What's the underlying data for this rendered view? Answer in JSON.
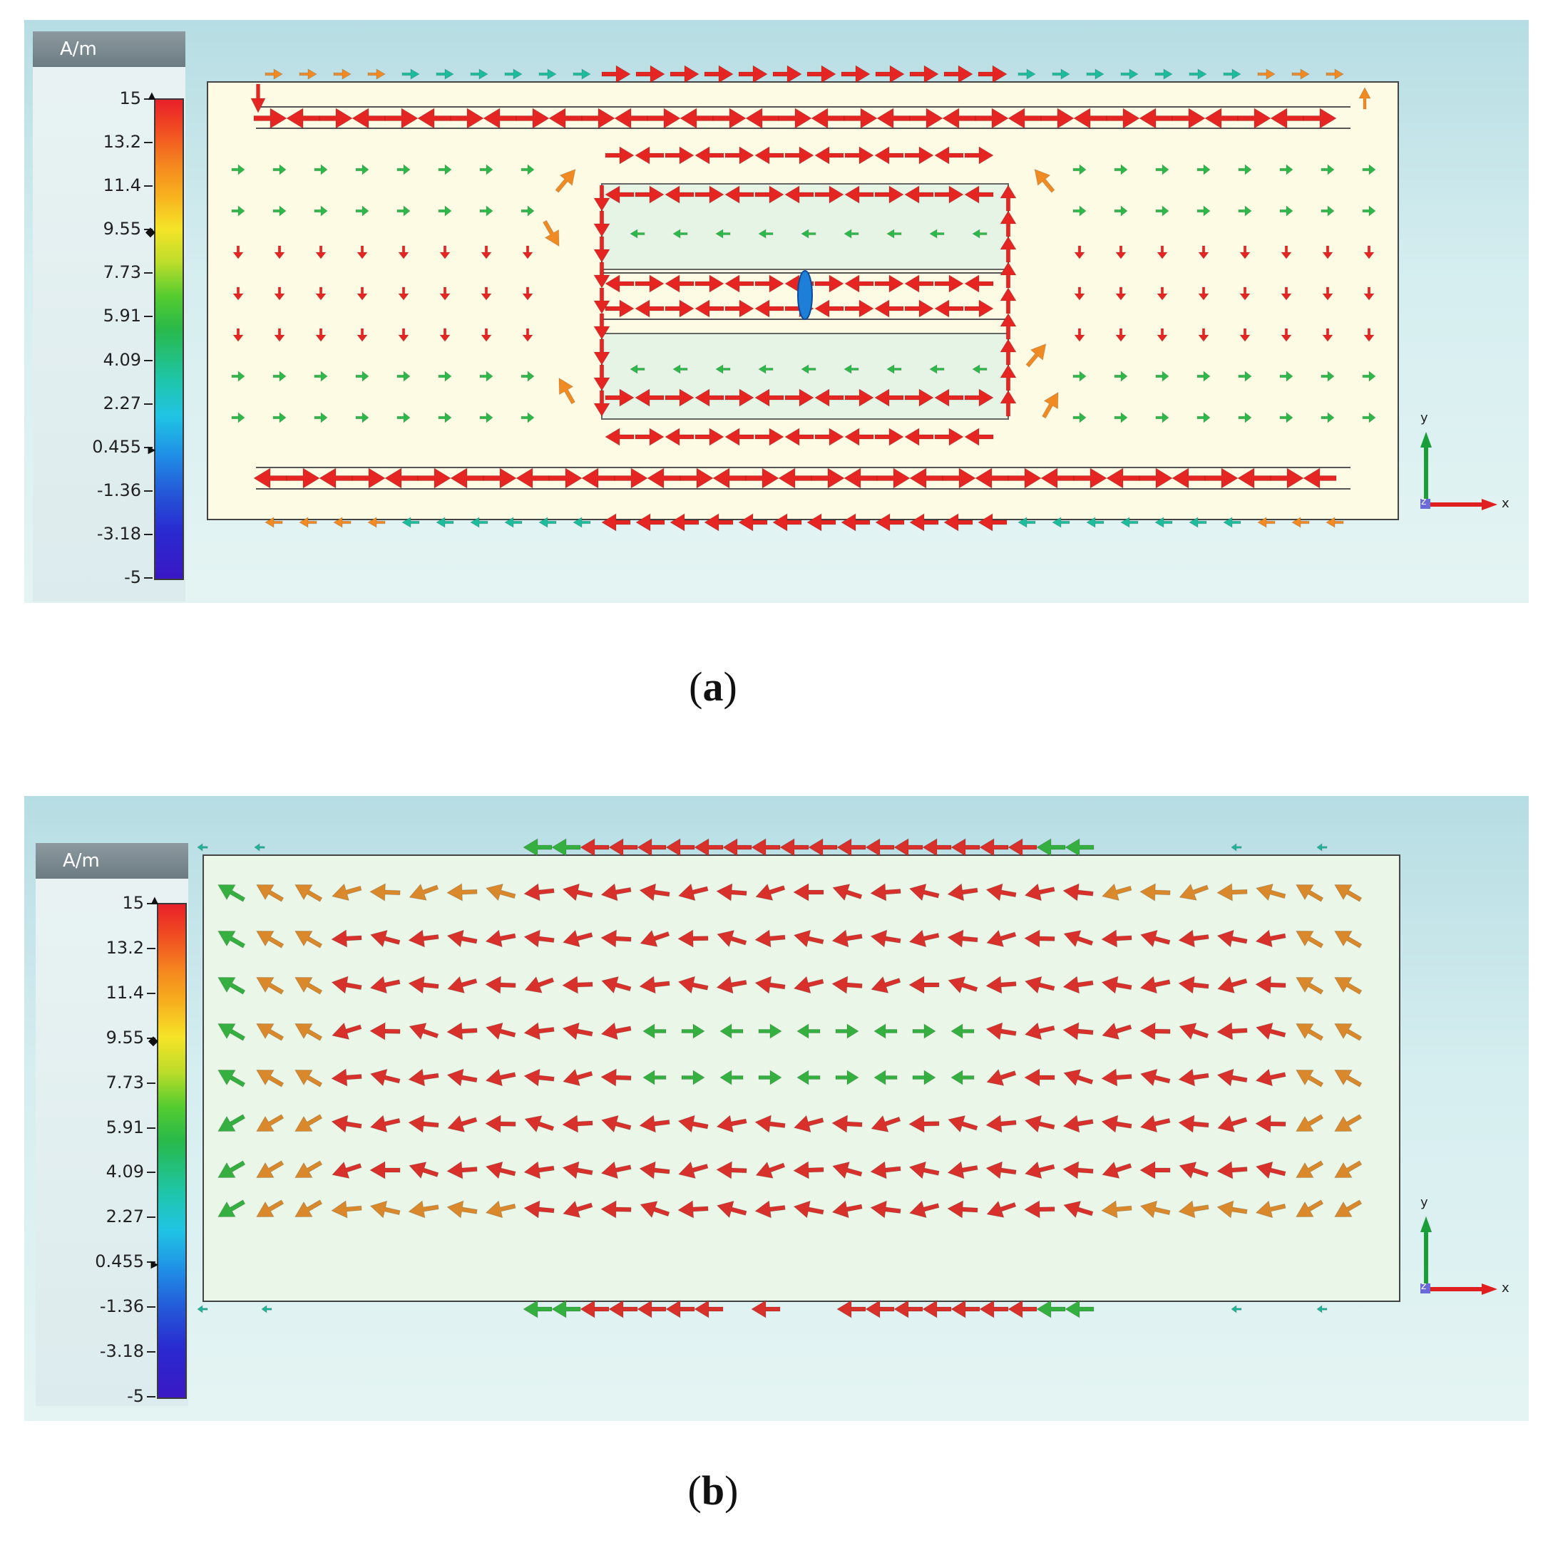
{
  "panels": [
    {
      "id": "a",
      "caption_open": "(",
      "caption_letter": "a",
      "caption_close": ")",
      "legend": {
        "unit": "A/m",
        "ticks": [
          "15",
          "13.2",
          "11.4",
          "9.55",
          "7.73",
          "5.91",
          "4.09",
          "2.27",
          "0.455",
          "-1.36",
          "-3.18",
          "-5"
        ]
      },
      "axes": {
        "y": "y",
        "z": "z",
        "x": "x"
      },
      "field_pattern": "loop",
      "colors": {
        "high": "#e52522",
        "mid": "#f08a23",
        "low": "#2fb84a",
        "teal": "#1dbb9c"
      }
    },
    {
      "id": "b",
      "caption_open": "(",
      "caption_letter": "b",
      "caption_close": ")",
      "legend": {
        "unit": "A/m",
        "ticks": [
          "15",
          "13.2",
          "11.4",
          "9.55",
          "7.73",
          "5.91",
          "4.09",
          "2.27",
          "0.455",
          "-1.36",
          "-3.18",
          "-5"
        ]
      },
      "axes": {
        "y": "y",
        "z": "z",
        "x": "x"
      },
      "field_pattern": "uniform-left",
      "colors": {
        "high": "#d8302a",
        "mid": "#d9882c",
        "low": "#35b040",
        "teal": "#22b39a"
      }
    }
  ]
}
